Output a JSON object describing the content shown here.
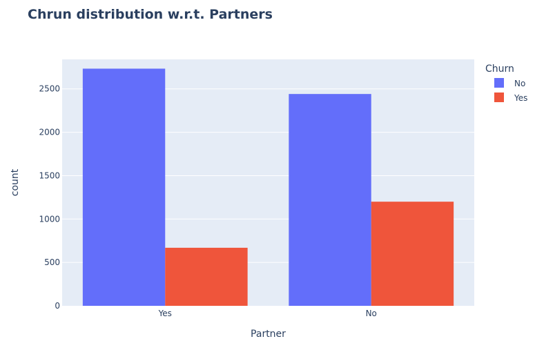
{
  "chart_data": {
    "type": "bar",
    "title": "Chrun distribution w.r.t. Partners",
    "xlabel": "Partner",
    "ylabel": "count",
    "categories": [
      "Yes",
      "No"
    ],
    "series": [
      {
        "name": "No",
        "values": [
          2733,
          2441
        ],
        "color": "#636efa"
      },
      {
        "name": "Yes",
        "values": [
          669,
          1200
        ],
        "color": "#ef553b"
      }
    ],
    "ylim": [
      0,
      2840
    ],
    "yticks": [
      0,
      500,
      1000,
      1500,
      2000,
      2500
    ],
    "grid": true,
    "legend": {
      "title": "Churn",
      "placement": "top-right"
    },
    "plot_bgcolor": "#e5ecf6",
    "gridcolor": "#ffffff"
  }
}
